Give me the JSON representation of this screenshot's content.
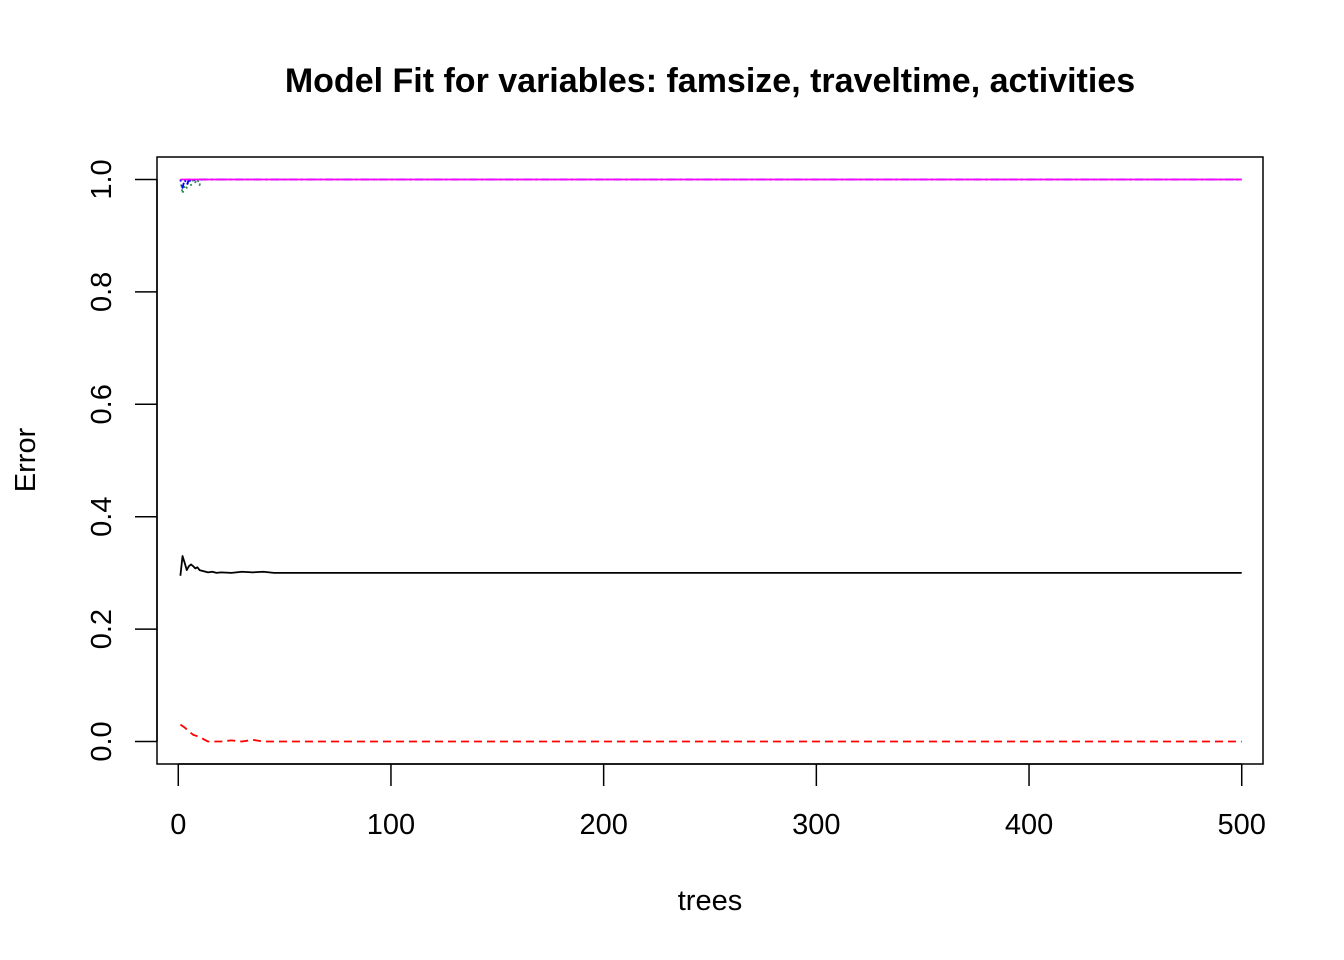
{
  "chart_data": {
    "type": "line",
    "title": "Model Fit for variables: famsize, traveltime, activities",
    "xlabel": "trees",
    "ylabel": "Error",
    "xlim": [
      -10,
      510
    ],
    "ylim": [
      -0.04,
      1.04
    ],
    "xticks": [
      0,
      100,
      200,
      300,
      400,
      500
    ],
    "xtick_labels": [
      "0",
      "100",
      "200",
      "300",
      "400",
      "500"
    ],
    "yticks": [
      0.0,
      0.2,
      0.4,
      0.6,
      0.8,
      1.0
    ],
    "ytick_labels": [
      "0.0",
      "0.2",
      "0.4",
      "0.6",
      "0.8",
      "1.0"
    ],
    "grid": false,
    "legend": "none",
    "series": [
      {
        "color": "#000000",
        "dash": "solid",
        "x": [
          1,
          2,
          3,
          4,
          5,
          6,
          7,
          8,
          9,
          10,
          12,
          14,
          16,
          18,
          20,
          25,
          30,
          35,
          40,
          45,
          50,
          500
        ],
        "y": [
          0.295,
          0.33,
          0.318,
          0.305,
          0.312,
          0.315,
          0.312,
          0.308,
          0.31,
          0.305,
          0.303,
          0.301,
          0.302,
          0.3,
          0.301,
          0.3,
          0.302,
          0.301,
          0.302,
          0.3,
          0.3,
          0.3
        ]
      },
      {
        "color": "#ff0000",
        "dash": "dashed",
        "x": [
          1,
          3,
          5,
          7,
          10,
          12,
          14,
          20,
          25,
          30,
          35,
          40,
          45,
          500
        ],
        "y": [
          0.03,
          0.025,
          0.018,
          0.012,
          0.008,
          0.004,
          0.0,
          0.0,
          0.002,
          0.0,
          0.003,
          0.0,
          0.0,
          0.0
        ]
      },
      {
        "color": "#2e8b57",
        "dash": "dotted",
        "x": [
          1,
          2,
          3,
          4,
          5,
          6,
          7,
          8,
          9,
          10,
          11,
          12,
          13,
          14,
          500
        ],
        "y": [
          1.0,
          0.975,
          0.99,
          0.985,
          1.0,
          0.99,
          1.0,
          0.995,
          1.0,
          0.99,
          1.0,
          1.0,
          1.0,
          1.0,
          1.0
        ]
      },
      {
        "color": "#0000ff",
        "dash": "dotdash",
        "x": [
          1,
          2,
          3,
          4,
          5,
          6,
          8,
          10,
          12,
          500
        ],
        "y": [
          1.0,
          0.985,
          1.0,
          0.99,
          1.0,
          0.995,
          1.0,
          1.0,
          1.0,
          1.0
        ]
      },
      {
        "color": "#ff00ff",
        "dash": "solid",
        "x": [
          1,
          500
        ],
        "y": [
          1.0,
          1.0
        ]
      }
    ]
  }
}
